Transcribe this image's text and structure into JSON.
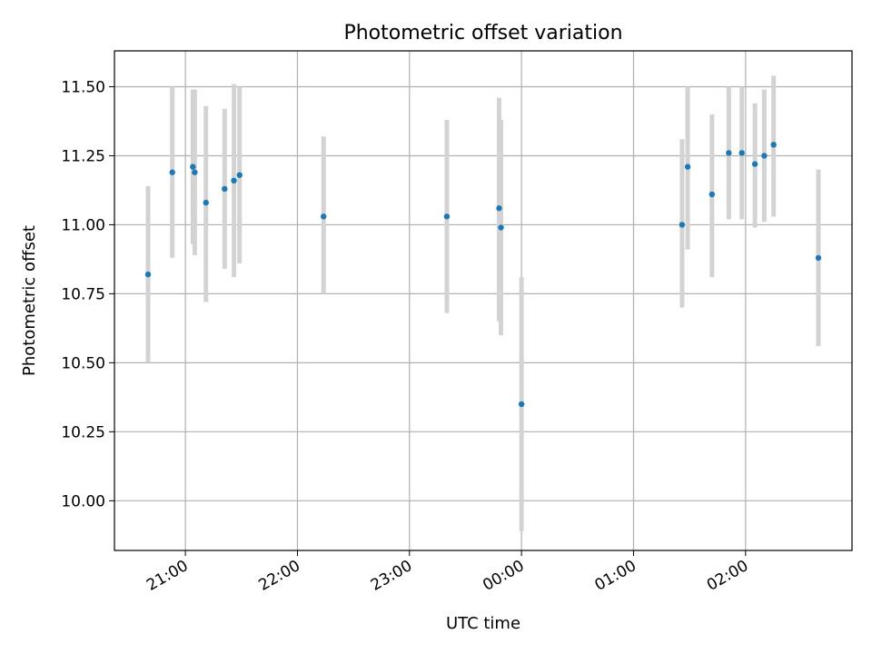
{
  "chart_data": {
    "type": "scatter",
    "title": "Photometric offset variation",
    "xlabel": "UTC time",
    "ylabel": "Photometric offset",
    "x_ticks": [
      "21:00",
      "22:00",
      "23:00",
      "00:00",
      "01:00",
      "02:00"
    ],
    "x_tick_times": [
      "2000-01-01T21:00",
      "2000-01-01T22:00",
      "2000-01-01T23:00",
      "2000-01-02T00:00",
      "2000-01-02T01:00",
      "2000-01-02T02:00"
    ],
    "xlim": [
      "2000-01-01T20:22",
      "2000-01-02T02:57"
    ],
    "y_ticks": [
      "10.00",
      "10.25",
      "10.50",
      "10.75",
      "11.00",
      "11.25",
      "11.50"
    ],
    "ylim": [
      9.82,
      11.63
    ],
    "grid": true,
    "colors": {
      "point": "#1f77b4",
      "errorbar": "#d3d3d3",
      "grid": "#b0b0b0"
    },
    "series": [
      {
        "points": [
          {
            "t": "2000-01-01T20:40",
            "y": 10.82,
            "lo": 10.5,
            "hi": 11.14
          },
          {
            "t": "2000-01-01T20:53",
            "y": 11.19,
            "lo": 10.88,
            "hi": 11.5
          },
          {
            "t": "2000-01-01T21:04",
            "y": 11.21,
            "lo": 10.93,
            "hi": 11.49
          },
          {
            "t": "2000-01-01T21:05",
            "y": 11.19,
            "lo": 10.89,
            "hi": 11.49
          },
          {
            "t": "2000-01-01T21:11",
            "y": 11.08,
            "lo": 10.72,
            "hi": 11.43
          },
          {
            "t": "2000-01-01T21:21",
            "y": 11.13,
            "lo": 10.84,
            "hi": 11.42
          },
          {
            "t": "2000-01-01T21:26",
            "y": 11.16,
            "lo": 10.81,
            "hi": 11.51
          },
          {
            "t": "2000-01-01T21:29",
            "y": 11.18,
            "lo": 10.86,
            "hi": 11.5
          },
          {
            "t": "2000-01-01T22:14",
            "y": 11.03,
            "lo": 10.75,
            "hi": 11.32
          },
          {
            "t": "2000-01-01T23:20",
            "y": 11.03,
            "lo": 10.68,
            "hi": 11.38
          },
          {
            "t": "2000-01-01T23:48",
            "y": 11.06,
            "lo": 10.65,
            "hi": 11.46
          },
          {
            "t": "2000-01-01T23:49",
            "y": 10.99,
            "lo": 10.6,
            "hi": 11.38
          },
          {
            "t": "2000-01-02T00:00",
            "y": 10.35,
            "lo": 9.89,
            "hi": 10.81
          },
          {
            "t": "2000-01-02T01:26",
            "y": 11.0,
            "lo": 10.7,
            "hi": 11.31
          },
          {
            "t": "2000-01-02T01:29",
            "y": 11.21,
            "lo": 10.91,
            "hi": 11.5
          },
          {
            "t": "2000-01-02T01:42",
            "y": 11.11,
            "lo": 10.81,
            "hi": 11.4
          },
          {
            "t": "2000-01-02T01:51",
            "y": 11.26,
            "lo": 11.02,
            "hi": 11.5
          },
          {
            "t": "2000-01-02T01:58",
            "y": 11.26,
            "lo": 11.02,
            "hi": 11.5
          },
          {
            "t": "2000-01-02T02:05",
            "y": 11.22,
            "lo": 10.99,
            "hi": 11.44
          },
          {
            "t": "2000-01-02T02:10",
            "y": 11.25,
            "lo": 11.01,
            "hi": 11.49
          },
          {
            "t": "2000-01-02T02:15",
            "y": 11.29,
            "lo": 11.03,
            "hi": 11.54
          },
          {
            "t": "2000-01-02T02:39",
            "y": 10.88,
            "lo": 10.56,
            "hi": 11.2
          }
        ]
      }
    ]
  }
}
